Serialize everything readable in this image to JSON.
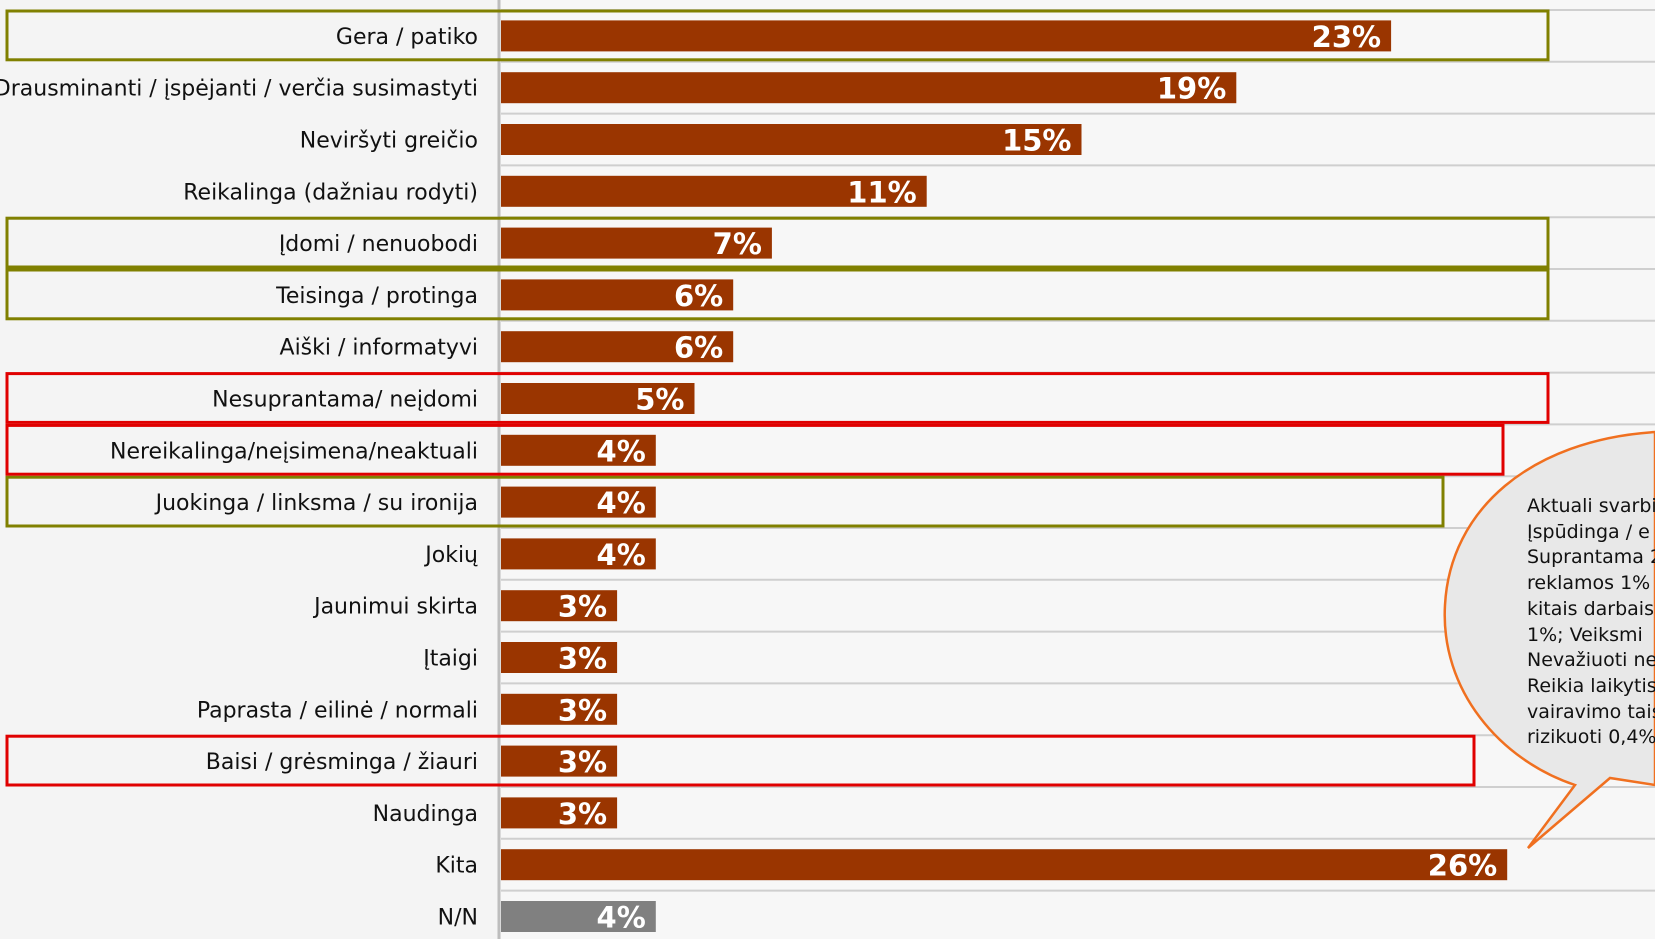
{
  "chart_data": {
    "type": "bar",
    "orientation": "horizontal",
    "title": "",
    "xlabel": "",
    "ylabel": "",
    "xlim": [
      0,
      40
    ],
    "categories": [
      "Gera / patiko",
      "Drausminanti / įspėjanti / verčia susimastyti",
      "Neviršyti greičio",
      "Reikalinga (dažniau rodyti)",
      "Įdomi / nenuobodi",
      "Teisinga / protinga",
      "Aiški / informatyvi",
      "Nesuprantama/ neįdomi",
      "Nereikalinga/neįsimena/neaktuali",
      "Juokinga / linksma / su ironija",
      "Jokių",
      "Jaunimui skirta",
      "Įtaigi",
      "Paprasta / eilinė / normali",
      "Baisi / grėsminga / žiauri",
      "Naudinga",
      "Kita",
      "N/N"
    ],
    "values": [
      23,
      19,
      15,
      11,
      7,
      6,
      6,
      5,
      4,
      4,
      4,
      3,
      3,
      3,
      3,
      3,
      26,
      4
    ],
    "value_labels": [
      "23%",
      "19%",
      "15%",
      "11%",
      "7%",
      "6%",
      "6%",
      "5%",
      "4%",
      "4%",
      "4%",
      "3%",
      "3%",
      "3%",
      "3%",
      "3%",
      "26%",
      "4%"
    ],
    "bar_colors": [
      "#9a3500",
      "#9a3500",
      "#9a3500",
      "#9a3500",
      "#9a3500",
      "#9a3500",
      "#9a3500",
      "#9a3500",
      "#9a3500",
      "#9a3500",
      "#9a3500",
      "#9a3500",
      "#9a3500",
      "#9a3500",
      "#9a3500",
      "#9a3500",
      "#9a3500",
      "#808080"
    ],
    "highlights": {
      "positive": {
        "color": "#808000",
        "rows": [
          0,
          4,
          5,
          9
        ]
      },
      "negative": {
        "color": "#e00000",
        "rows": [
          7,
          8,
          14
        ]
      }
    },
    "grid": true,
    "legend": "none"
  },
  "callout": {
    "text": "Aktuali svarbi\nĮspūdinga / e\nSuprantama 2\nreklamos 1%\nkitais darbais\n1%; Veiksmi\nNevažiuoti ne\nReikia laikytis\nvairavimo tais\nrizikuoti 0,4%",
    "border_color": "#f07020",
    "fill_color": "#e8e8e8"
  }
}
